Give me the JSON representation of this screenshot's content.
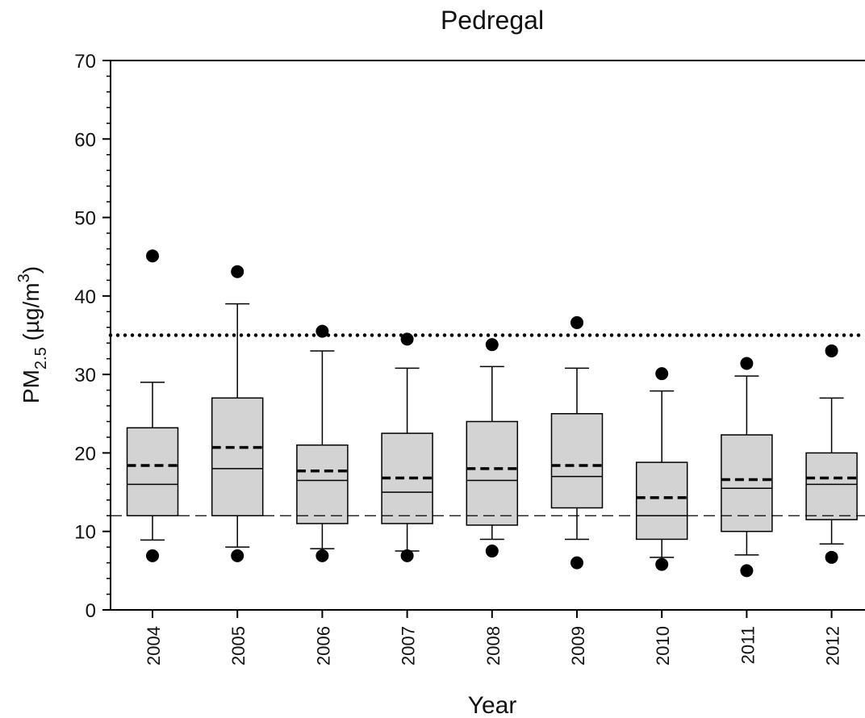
{
  "chart_data": {
    "type": "box",
    "title": "Pedregal",
    "x_label": "Year",
    "y_label": {
      "main": "PM",
      "sub": "2.5",
      "rest": " (µg/m",
      "sup": "3",
      "end": ")"
    },
    "categories": [
      "2004",
      "2005",
      "2006",
      "2007",
      "2008",
      "2009",
      "2010",
      "2011",
      "2012"
    ],
    "color": "#d3d3d3",
    "boxes": [
      {
        "whisker_low": 8.9,
        "q1": 12,
        "median": 16,
        "mean": 18.4,
        "q3": 23.2,
        "whisker_high": 29,
        "outliers": [
          6.9,
          45.1
        ]
      },
      {
        "whisker_low": 8,
        "q1": 12,
        "median": 18,
        "mean": 20.7,
        "q3": 27,
        "whisker_high": 39,
        "outliers": [
          6.9,
          43.1
        ]
      },
      {
        "whisker_low": 7.8,
        "q1": 11,
        "median": 16.5,
        "mean": 17.7,
        "q3": 21,
        "whisker_high": 33,
        "outliers": [
          6.9,
          35.5
        ]
      },
      {
        "whisker_low": 7.5,
        "q1": 11,
        "median": 15,
        "mean": 16.8,
        "q3": 22.5,
        "whisker_high": 30.8,
        "outliers": [
          6.9,
          34.5
        ]
      },
      {
        "whisker_low": 9,
        "q1": 10.8,
        "median": 16.5,
        "mean": 18,
        "q3": 24,
        "whisker_high": 31,
        "outliers": [
          7.5,
          33.8
        ]
      },
      {
        "whisker_low": 9,
        "q1": 13,
        "median": 17,
        "mean": 18.4,
        "q3": 25,
        "whisker_high": 30.8,
        "outliers": [
          6,
          36.6
        ]
      },
      {
        "whisker_low": 6.7,
        "q1": 9,
        "median": 12,
        "mean": 14.3,
        "q3": 18.8,
        "whisker_high": 27.9,
        "outliers": [
          5.8,
          30.1
        ]
      },
      {
        "whisker_low": 7,
        "q1": 10,
        "median": 15.5,
        "mean": 16.6,
        "q3": 22.3,
        "whisker_high": 29.8,
        "outliers": [
          5,
          31.4
        ]
      },
      {
        "whisker_low": 8.4,
        "q1": 11.5,
        "median": 16,
        "mean": 16.8,
        "q3": 20,
        "whisker_high": 27,
        "outliers": [
          6.7,
          33
        ]
      }
    ],
    "reference_lines": [
      {
        "value": 35,
        "style": "dotted"
      },
      {
        "value": 12,
        "style": "dashed"
      }
    ],
    "ylim": [
      0,
      70
    ],
    "yticks": [
      0,
      10,
      20,
      30,
      40,
      50,
      60,
      70
    ],
    "yminor_ticks": [
      2,
      4,
      6,
      8,
      12,
      14,
      16,
      18,
      22,
      24,
      26,
      28,
      32,
      34,
      36,
      38,
      42,
      44,
      46,
      48,
      52,
      54,
      56,
      58,
      62,
      64,
      66,
      68
    ]
  }
}
